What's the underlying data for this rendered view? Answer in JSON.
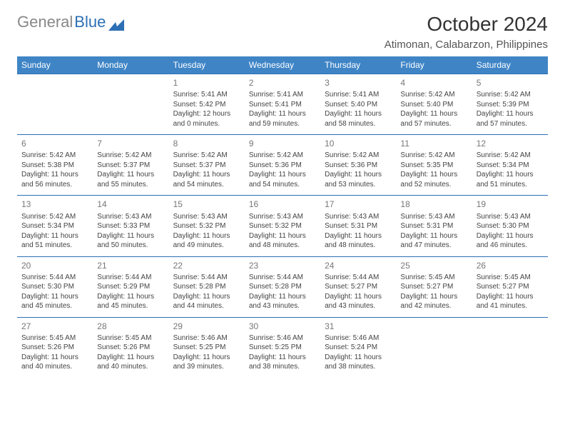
{
  "logo": {
    "gray": "General",
    "blue": "Blue"
  },
  "title": "October 2024",
  "location": "Atimonan, Calabarzon, Philippines",
  "colors": {
    "header_bg": "#3f85c6",
    "header_text": "#ffffff",
    "row_sep": "#2c6fb5",
    "logo_gray": "#888888",
    "logo_blue": "#2c6fb5"
  },
  "day_headers": [
    "Sunday",
    "Monday",
    "Tuesday",
    "Wednesday",
    "Thursday",
    "Friday",
    "Saturday"
  ],
  "weeks": [
    [
      null,
      null,
      {
        "n": "1",
        "sr": "5:41 AM",
        "ss": "5:42 PM",
        "dh": "12",
        "dm": "0"
      },
      {
        "n": "2",
        "sr": "5:41 AM",
        "ss": "5:41 PM",
        "dh": "11",
        "dm": "59"
      },
      {
        "n": "3",
        "sr": "5:41 AM",
        "ss": "5:40 PM",
        "dh": "11",
        "dm": "58"
      },
      {
        "n": "4",
        "sr": "5:42 AM",
        "ss": "5:40 PM",
        "dh": "11",
        "dm": "57"
      },
      {
        "n": "5",
        "sr": "5:42 AM",
        "ss": "5:39 PM",
        "dh": "11",
        "dm": "57"
      }
    ],
    [
      {
        "n": "6",
        "sr": "5:42 AM",
        "ss": "5:38 PM",
        "dh": "11",
        "dm": "56"
      },
      {
        "n": "7",
        "sr": "5:42 AM",
        "ss": "5:37 PM",
        "dh": "11",
        "dm": "55"
      },
      {
        "n": "8",
        "sr": "5:42 AM",
        "ss": "5:37 PM",
        "dh": "11",
        "dm": "54"
      },
      {
        "n": "9",
        "sr": "5:42 AM",
        "ss": "5:36 PM",
        "dh": "11",
        "dm": "54"
      },
      {
        "n": "10",
        "sr": "5:42 AM",
        "ss": "5:36 PM",
        "dh": "11",
        "dm": "53"
      },
      {
        "n": "11",
        "sr": "5:42 AM",
        "ss": "5:35 PM",
        "dh": "11",
        "dm": "52"
      },
      {
        "n": "12",
        "sr": "5:42 AM",
        "ss": "5:34 PM",
        "dh": "11",
        "dm": "51"
      }
    ],
    [
      {
        "n": "13",
        "sr": "5:42 AM",
        "ss": "5:34 PM",
        "dh": "11",
        "dm": "51"
      },
      {
        "n": "14",
        "sr": "5:43 AM",
        "ss": "5:33 PM",
        "dh": "11",
        "dm": "50"
      },
      {
        "n": "15",
        "sr": "5:43 AM",
        "ss": "5:32 PM",
        "dh": "11",
        "dm": "49"
      },
      {
        "n": "16",
        "sr": "5:43 AM",
        "ss": "5:32 PM",
        "dh": "11",
        "dm": "48"
      },
      {
        "n": "17",
        "sr": "5:43 AM",
        "ss": "5:31 PM",
        "dh": "11",
        "dm": "48"
      },
      {
        "n": "18",
        "sr": "5:43 AM",
        "ss": "5:31 PM",
        "dh": "11",
        "dm": "47"
      },
      {
        "n": "19",
        "sr": "5:43 AM",
        "ss": "5:30 PM",
        "dh": "11",
        "dm": "46"
      }
    ],
    [
      {
        "n": "20",
        "sr": "5:44 AM",
        "ss": "5:30 PM",
        "dh": "11",
        "dm": "45"
      },
      {
        "n": "21",
        "sr": "5:44 AM",
        "ss": "5:29 PM",
        "dh": "11",
        "dm": "45"
      },
      {
        "n": "22",
        "sr": "5:44 AM",
        "ss": "5:28 PM",
        "dh": "11",
        "dm": "44"
      },
      {
        "n": "23",
        "sr": "5:44 AM",
        "ss": "5:28 PM",
        "dh": "11",
        "dm": "43"
      },
      {
        "n": "24",
        "sr": "5:44 AM",
        "ss": "5:27 PM",
        "dh": "11",
        "dm": "43"
      },
      {
        "n": "25",
        "sr": "5:45 AM",
        "ss": "5:27 PM",
        "dh": "11",
        "dm": "42"
      },
      {
        "n": "26",
        "sr": "5:45 AM",
        "ss": "5:27 PM",
        "dh": "11",
        "dm": "41"
      }
    ],
    [
      {
        "n": "27",
        "sr": "5:45 AM",
        "ss": "5:26 PM",
        "dh": "11",
        "dm": "40"
      },
      {
        "n": "28",
        "sr": "5:45 AM",
        "ss": "5:26 PM",
        "dh": "11",
        "dm": "40"
      },
      {
        "n": "29",
        "sr": "5:46 AM",
        "ss": "5:25 PM",
        "dh": "11",
        "dm": "39"
      },
      {
        "n": "30",
        "sr": "5:46 AM",
        "ss": "5:25 PM",
        "dh": "11",
        "dm": "38"
      },
      {
        "n": "31",
        "sr": "5:46 AM",
        "ss": "5:24 PM",
        "dh": "11",
        "dm": "38"
      },
      null,
      null
    ]
  ],
  "labels": {
    "sunrise": "Sunrise:",
    "sunset": "Sunset:",
    "daylight_prefix": "Daylight:",
    "hours_word": "hours",
    "and_word": "and",
    "minutes_word": "minutes."
  }
}
